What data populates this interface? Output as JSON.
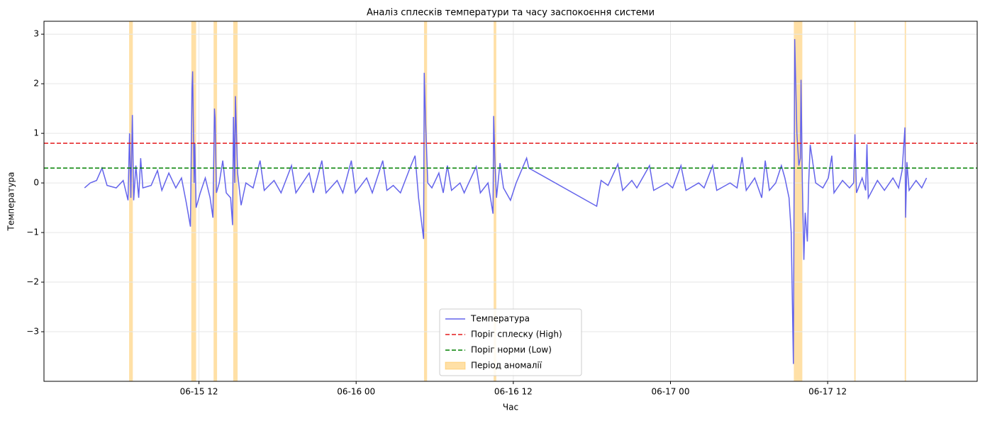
{
  "chart_data": {
    "type": "line",
    "title": "Аналіз сплесків температури та часу заспокоєння системи",
    "xlabel": "Час",
    "ylabel": "Температура",
    "xlim": [
      "06-15 00:10",
      "06-17 23:25"
    ],
    "xticks": [
      {
        "value": "06-15 12:00",
        "label": "06-15 12"
      },
      {
        "value": "06-16 00:00",
        "label": "06-16 00"
      },
      {
        "value": "06-16 12:00",
        "label": "06-16 12"
      },
      {
        "value": "06-17 00:00",
        "label": "06-17 00"
      },
      {
        "value": "06-17 12:00",
        "label": "06-17 12"
      }
    ],
    "ylim": [
      -4.0,
      3.26
    ],
    "yticks": [
      {
        "value": -3,
        "label": "−3"
      },
      {
        "value": -2,
        "label": "−2"
      },
      {
        "value": -1,
        "label": "−1"
      },
      0,
      1,
      2,
      3
    ],
    "grid": true,
    "legend": "lower center",
    "x": [
      "06-15 03:16",
      "06-15 03:42",
      "06-15 04:11",
      "06-15 04:36",
      "06-15 04:59",
      "06-15 05:41",
      "06-15 06:13",
      "06-15 06:35",
      "06-15 06:42",
      "06-15 06:48",
      "06-15 06:55",
      "06-15 07:01",
      "06-15 07:11",
      "06-15 07:24",
      "06-15 07:33",
      "06-15 07:43",
      "06-15 08:21",
      "06-15 08:50",
      "06-15 09:10",
      "06-15 09:42",
      "06-15 10:14",
      "06-15 10:40",
      "06-15 11:02",
      "06-15 11:21",
      "06-15 11:28",
      "06-15 11:31",
      "06-15 11:38",
      "06-15 11:41",
      "06-15 11:47",
      "06-15 12:06",
      "06-15 12:29",
      "06-15 12:51",
      "06-15 13:04",
      "06-15 13:11",
      "06-15 13:14",
      "06-15 13:20",
      "06-15 13:33",
      "06-15 13:49",
      "06-15 14:05",
      "06-15 14:25",
      "06-15 14:34",
      "06-15 14:38",
      "06-15 14:44",
      "06-15 14:47",
      "06-15 14:57",
      "06-15 15:13",
      "06-15 15:35",
      "06-15 16:08",
      "06-15 16:40",
      "06-15 16:59",
      "06-15 17:44",
      "06-15 18:16",
      "06-15 19:04",
      "06-15 19:24",
      "06-15 20:25",
      "06-15 20:44",
      "06-15 21:23",
      "06-15 21:42",
      "06-15 22:33",
      "06-15 22:59",
      "06-15 23:38",
      "06-15 23:57",
      "06-16 00:48",
      "06-16 01:14",
      "06-16 02:02",
      "06-16 02:21",
      "06-16 02:50",
      "06-16 03:23",
      "06-16 04:11",
      "06-16 04:30",
      "06-16 04:46",
      "06-16 05:09",
      "06-16 05:12",
      "06-16 05:18",
      "06-16 05:28",
      "06-16 05:47",
      "06-16 06:19",
      "06-16 06:39",
      "06-16 06:58",
      "06-16 07:17",
      "06-16 07:56",
      "06-16 08:15",
      "06-16 09:10",
      "06-16 09:29",
      "06-16 10:04",
      "06-16 10:27",
      "06-16 10:30",
      "06-16 10:36",
      "06-16 10:43",
      "06-16 10:59",
      "06-16 11:15",
      "06-16 11:47",
      "06-16 12:13",
      "06-16 13:01",
      "06-16 13:11",
      "06-16 18:22",
      "06-16 18:42",
      "06-16 19:14",
      "06-16 19:59",
      "06-16 20:21",
      "06-16 21:03",
      "06-16 21:26",
      "06-16 22:24",
      "06-16 22:43",
      "06-16 23:44",
      "06-17 00:10",
      "06-17 00:48",
      "06-17 01:11",
      "06-17 02:09",
      "06-17 02:34",
      "06-17 03:13",
      "06-17 03:32",
      "06-17 04:33",
      "06-17 05:05",
      "06-17 05:28",
      "06-17 05:47",
      "06-17 06:26",
      "06-17 06:58",
      "06-17 07:14",
      "06-17 07:33",
      "06-17 08:02",
      "06-17 08:28",
      "06-17 08:44",
      "06-17 09:03",
      "06-17 09:13",
      "06-17 09:23",
      "06-17 09:29",
      "06-17 09:39",
      "06-17 09:48",
      "06-17 09:55",
      "06-17 09:58",
      "06-17 10:04",
      "06-17 10:11",
      "06-17 10:17",
      "06-17 10:27",
      "06-17 10:33",
      "06-17 10:40",
      "06-17 10:49",
      "06-17 11:05",
      "06-17 11:38",
      "06-17 12:03",
      "06-17 12:19",
      "06-17 12:29",
      "06-17 13:08",
      "06-17 13:40",
      "06-17 13:59",
      "06-17 14:05",
      "06-17 14:12",
      "06-17 14:38",
      "06-17 14:54",
      "06-17 15:00",
      "06-17 15:06",
      "06-17 15:48",
      "06-17 16:20",
      "06-17 16:59",
      "06-17 17:25",
      "06-17 17:41",
      "06-17 17:54",
      "06-17 17:57",
      "06-17 18:03",
      "06-17 18:13",
      "06-17 18:45",
      "06-17 19:11",
      "06-17 19:33"
    ],
    "series": [
      {
        "name": "Температура",
        "color": "#6464eb",
        "values": [
          -0.1,
          0.0,
          0.05,
          0.3,
          -0.05,
          -0.1,
          0.05,
          -0.35,
          1.0,
          -0.3,
          1.37,
          -0.35,
          0.35,
          -0.3,
          0.5,
          -0.1,
          -0.05,
          0.25,
          -0.15,
          0.2,
          -0.1,
          0.1,
          -0.4,
          -0.88,
          1.9,
          2.25,
          0.0,
          0.8,
          -0.5,
          -0.2,
          0.1,
          -0.3,
          -0.7,
          1.5,
          1.3,
          -0.2,
          0.0,
          0.45,
          -0.2,
          -0.3,
          -0.85,
          1.33,
          0.0,
          1.75,
          0.2,
          -0.45,
          0.0,
          -0.1,
          0.45,
          -0.15,
          0.05,
          -0.2,
          0.35,
          -0.2,
          0.2,
          -0.2,
          0.45,
          -0.2,
          0.05,
          -0.2,
          0.45,
          -0.2,
          0.1,
          -0.2,
          0.45,
          -0.15,
          -0.05,
          -0.2,
          0.35,
          0.55,
          -0.3,
          -1.13,
          2.22,
          1.25,
          0.0,
          -0.1,
          0.2,
          -0.2,
          0.35,
          -0.15,
          0.0,
          -0.2,
          0.33,
          -0.2,
          0.0,
          -0.62,
          1.35,
          0.4,
          -0.3,
          0.4,
          -0.1,
          -0.35,
          0.0,
          0.5,
          0.3,
          -0.47,
          0.05,
          -0.05,
          0.38,
          -0.15,
          0.05,
          -0.1,
          0.35,
          -0.15,
          0.0,
          -0.1,
          0.35,
          -0.15,
          0.0,
          -0.1,
          0.35,
          -0.15,
          0.0,
          -0.1,
          0.52,
          -0.15,
          0.1,
          -0.3,
          0.45,
          -0.15,
          0.0,
          0.35,
          0.1,
          -0.3,
          -1.0,
          -3.65,
          2.9,
          1.0,
          0.35,
          0.5,
          2.08,
          0.0,
          -1.55,
          -0.6,
          -1.18,
          0.0,
          0.77,
          0.5,
          0.0,
          -0.1,
          0.1,
          0.55,
          -0.2,
          0.05,
          -0.1,
          0.0,
          0.98,
          -0.2,
          0.1,
          -0.15,
          0.78,
          -0.3,
          0.05,
          -0.15,
          0.1,
          -0.1,
          0.25,
          1.12,
          -0.7,
          0.42,
          -0.15,
          0.05,
          -0.1,
          0.1
        ]
      }
    ],
    "thresholds": [
      {
        "name": "Поріг сплеску (High)",
        "value": 0.8,
        "color": "#e41a1c"
      },
      {
        "name": "Поріг норми (Low)",
        "value": 0.3,
        "color": "#008000"
      }
    ],
    "spans": {
      "name": "Період аномалії",
      "color": "#ffa500",
      "ranges": [
        [
          "06-15 06:40",
          "06-15 06:57"
        ],
        [
          "06-15 11:25",
          "06-15 11:47"
        ],
        [
          "06-15 13:07",
          "06-15 13:23"
        ],
        [
          "06-15 14:37",
          "06-15 14:57"
        ],
        [
          "06-16 05:11",
          "06-16 05:25"
        ],
        [
          "06-16 10:30",
          "06-16 10:42"
        ],
        [
          "06-17 09:25",
          "06-17 10:04"
        ],
        [
          "06-17 14:02",
          "06-17 14:08"
        ],
        [
          "06-17 17:53",
          "06-17 17:59"
        ]
      ]
    }
  }
}
